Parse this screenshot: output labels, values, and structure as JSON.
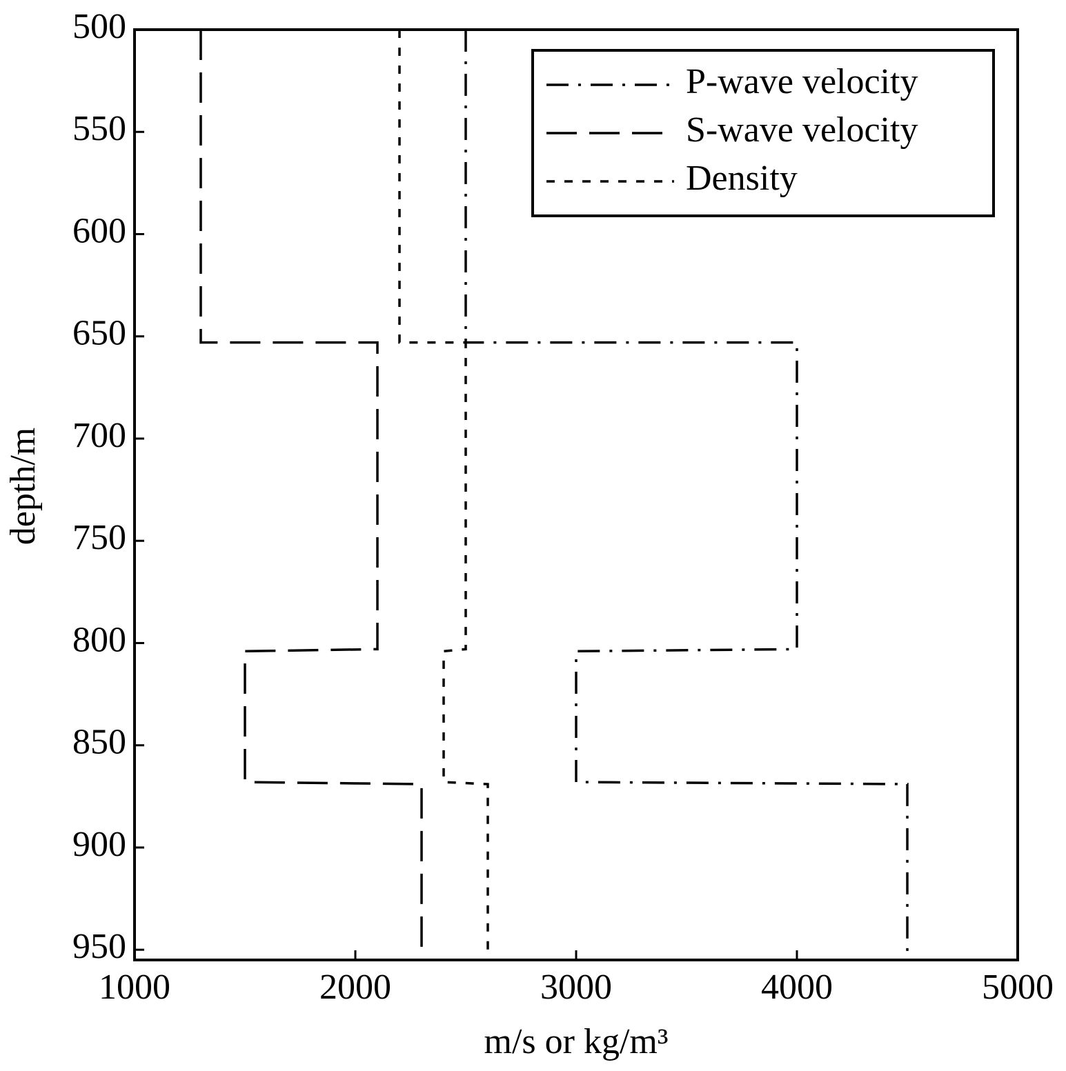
{
  "chart_data": {
    "type": "line",
    "xlabel": "m/s or kg/m³",
    "ylabel": "depth/m",
    "xlim": [
      1000,
      5000
    ],
    "xticks": [
      1000,
      2000,
      3000,
      4000,
      5000
    ],
    "ylim": [
      955,
      500
    ],
    "yticks": [
      500,
      550,
      600,
      650,
      700,
      750,
      800,
      850,
      900,
      950
    ],
    "legend": "upper right",
    "series": [
      {
        "name": "P-wave velocity",
        "color": "#000000",
        "dash": "dashdot",
        "x": [
          2500,
          2500,
          4000,
          4000,
          3000,
          3000,
          4500,
          4500
        ],
        "values": [
          500,
          653,
          653,
          803,
          804,
          868,
          869,
          955
        ]
      },
      {
        "name": "S-wave velocity",
        "color": "#000000",
        "dash": "dashed",
        "x": [
          1300,
          1300,
          2100,
          2100,
          1500,
          1500,
          2300,
          2300
        ],
        "values": [
          500,
          653,
          653,
          803,
          804,
          868,
          869,
          955
        ]
      },
      {
        "name": "Density",
        "color": "#000000",
        "dash": "dotted",
        "x": [
          2200,
          2200,
          2500,
          2500,
          2400,
          2400,
          2600,
          2600
        ],
        "values": [
          500,
          653,
          653,
          803,
          804,
          868,
          869,
          955
        ]
      }
    ]
  }
}
